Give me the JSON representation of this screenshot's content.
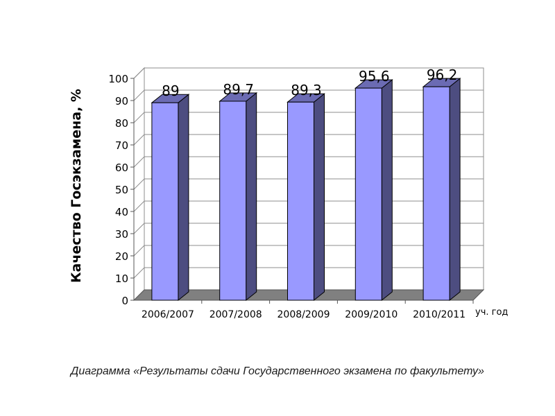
{
  "chart_data": {
    "type": "bar",
    "categories": [
      "2006/2007",
      "2007/2008",
      "2008/2009",
      "2009/2010",
      "2010/2011"
    ],
    "values": [
      89,
      89.7,
      89.3,
      95.6,
      96.2
    ],
    "value_labels": [
      "89",
      "89,7",
      "89,3",
      "95,6",
      "96,2"
    ],
    "title": "",
    "xlabel": "уч. год",
    "ylabel": "Качество Госэкзамена, %",
    "ylim": [
      0,
      100
    ],
    "yticks": [
      0,
      10,
      20,
      30,
      40,
      50,
      60,
      70,
      80,
      90,
      100
    ],
    "grid": true,
    "legend": "none",
    "style": "3d",
    "bar_color": "#9999ff",
    "bar_side_color": "#4d4d80",
    "bar_top_color": "#6b6bb3"
  },
  "caption": "Диаграмма «Результаты сдачи Государственного экзамена по факультету»"
}
